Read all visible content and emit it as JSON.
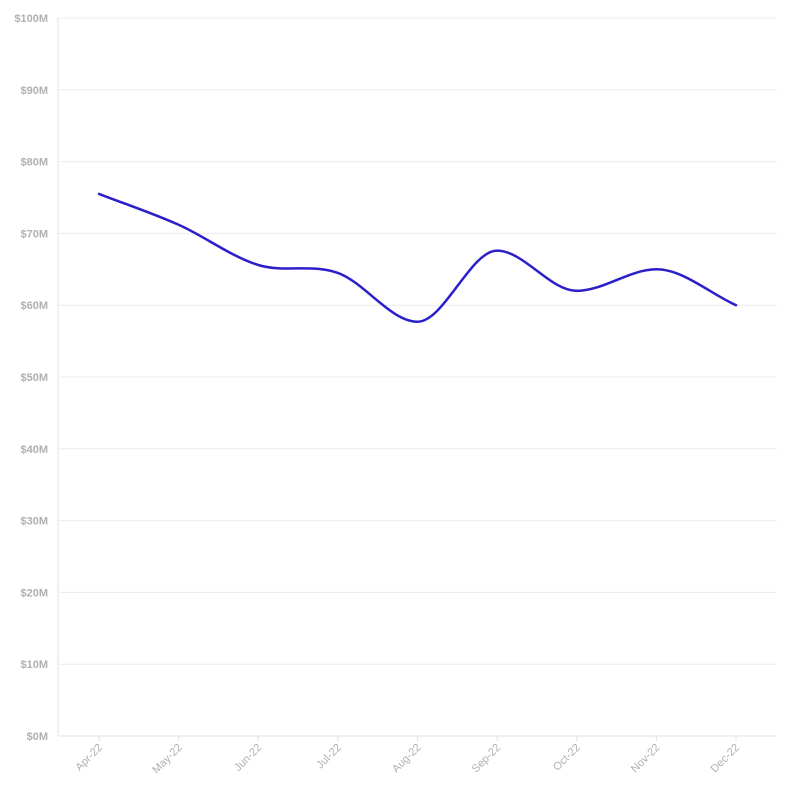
{
  "chart_data": {
    "type": "line",
    "title": "",
    "xlabel": "",
    "ylabel": "",
    "categories": [
      "Apr-22",
      "May-22",
      "Jun-22",
      "Jul-22",
      "Aug-22",
      "Sep-22",
      "Oct-22",
      "Nov-22",
      "Dec-22"
    ],
    "series": [
      {
        "values": [
          75.5,
          71.2,
          65.6,
          64.5,
          57.7,
          67.6,
          62.0,
          65.0,
          60.0
        ],
        "color": "#2b1fc9"
      }
    ],
    "ylim": [
      0,
      100
    ],
    "yticks": [
      0,
      10,
      20,
      30,
      40,
      50,
      60,
      70,
      80,
      90,
      100
    ],
    "ytick_labels": [
      "$0M",
      "$10M",
      "$20M",
      "$30M",
      "$40M",
      "$50M",
      "$60M",
      "$70M",
      "$80M",
      "$90M",
      "$100M"
    ],
    "grid": true,
    "legend": "none",
    "curve": "smooth"
  }
}
